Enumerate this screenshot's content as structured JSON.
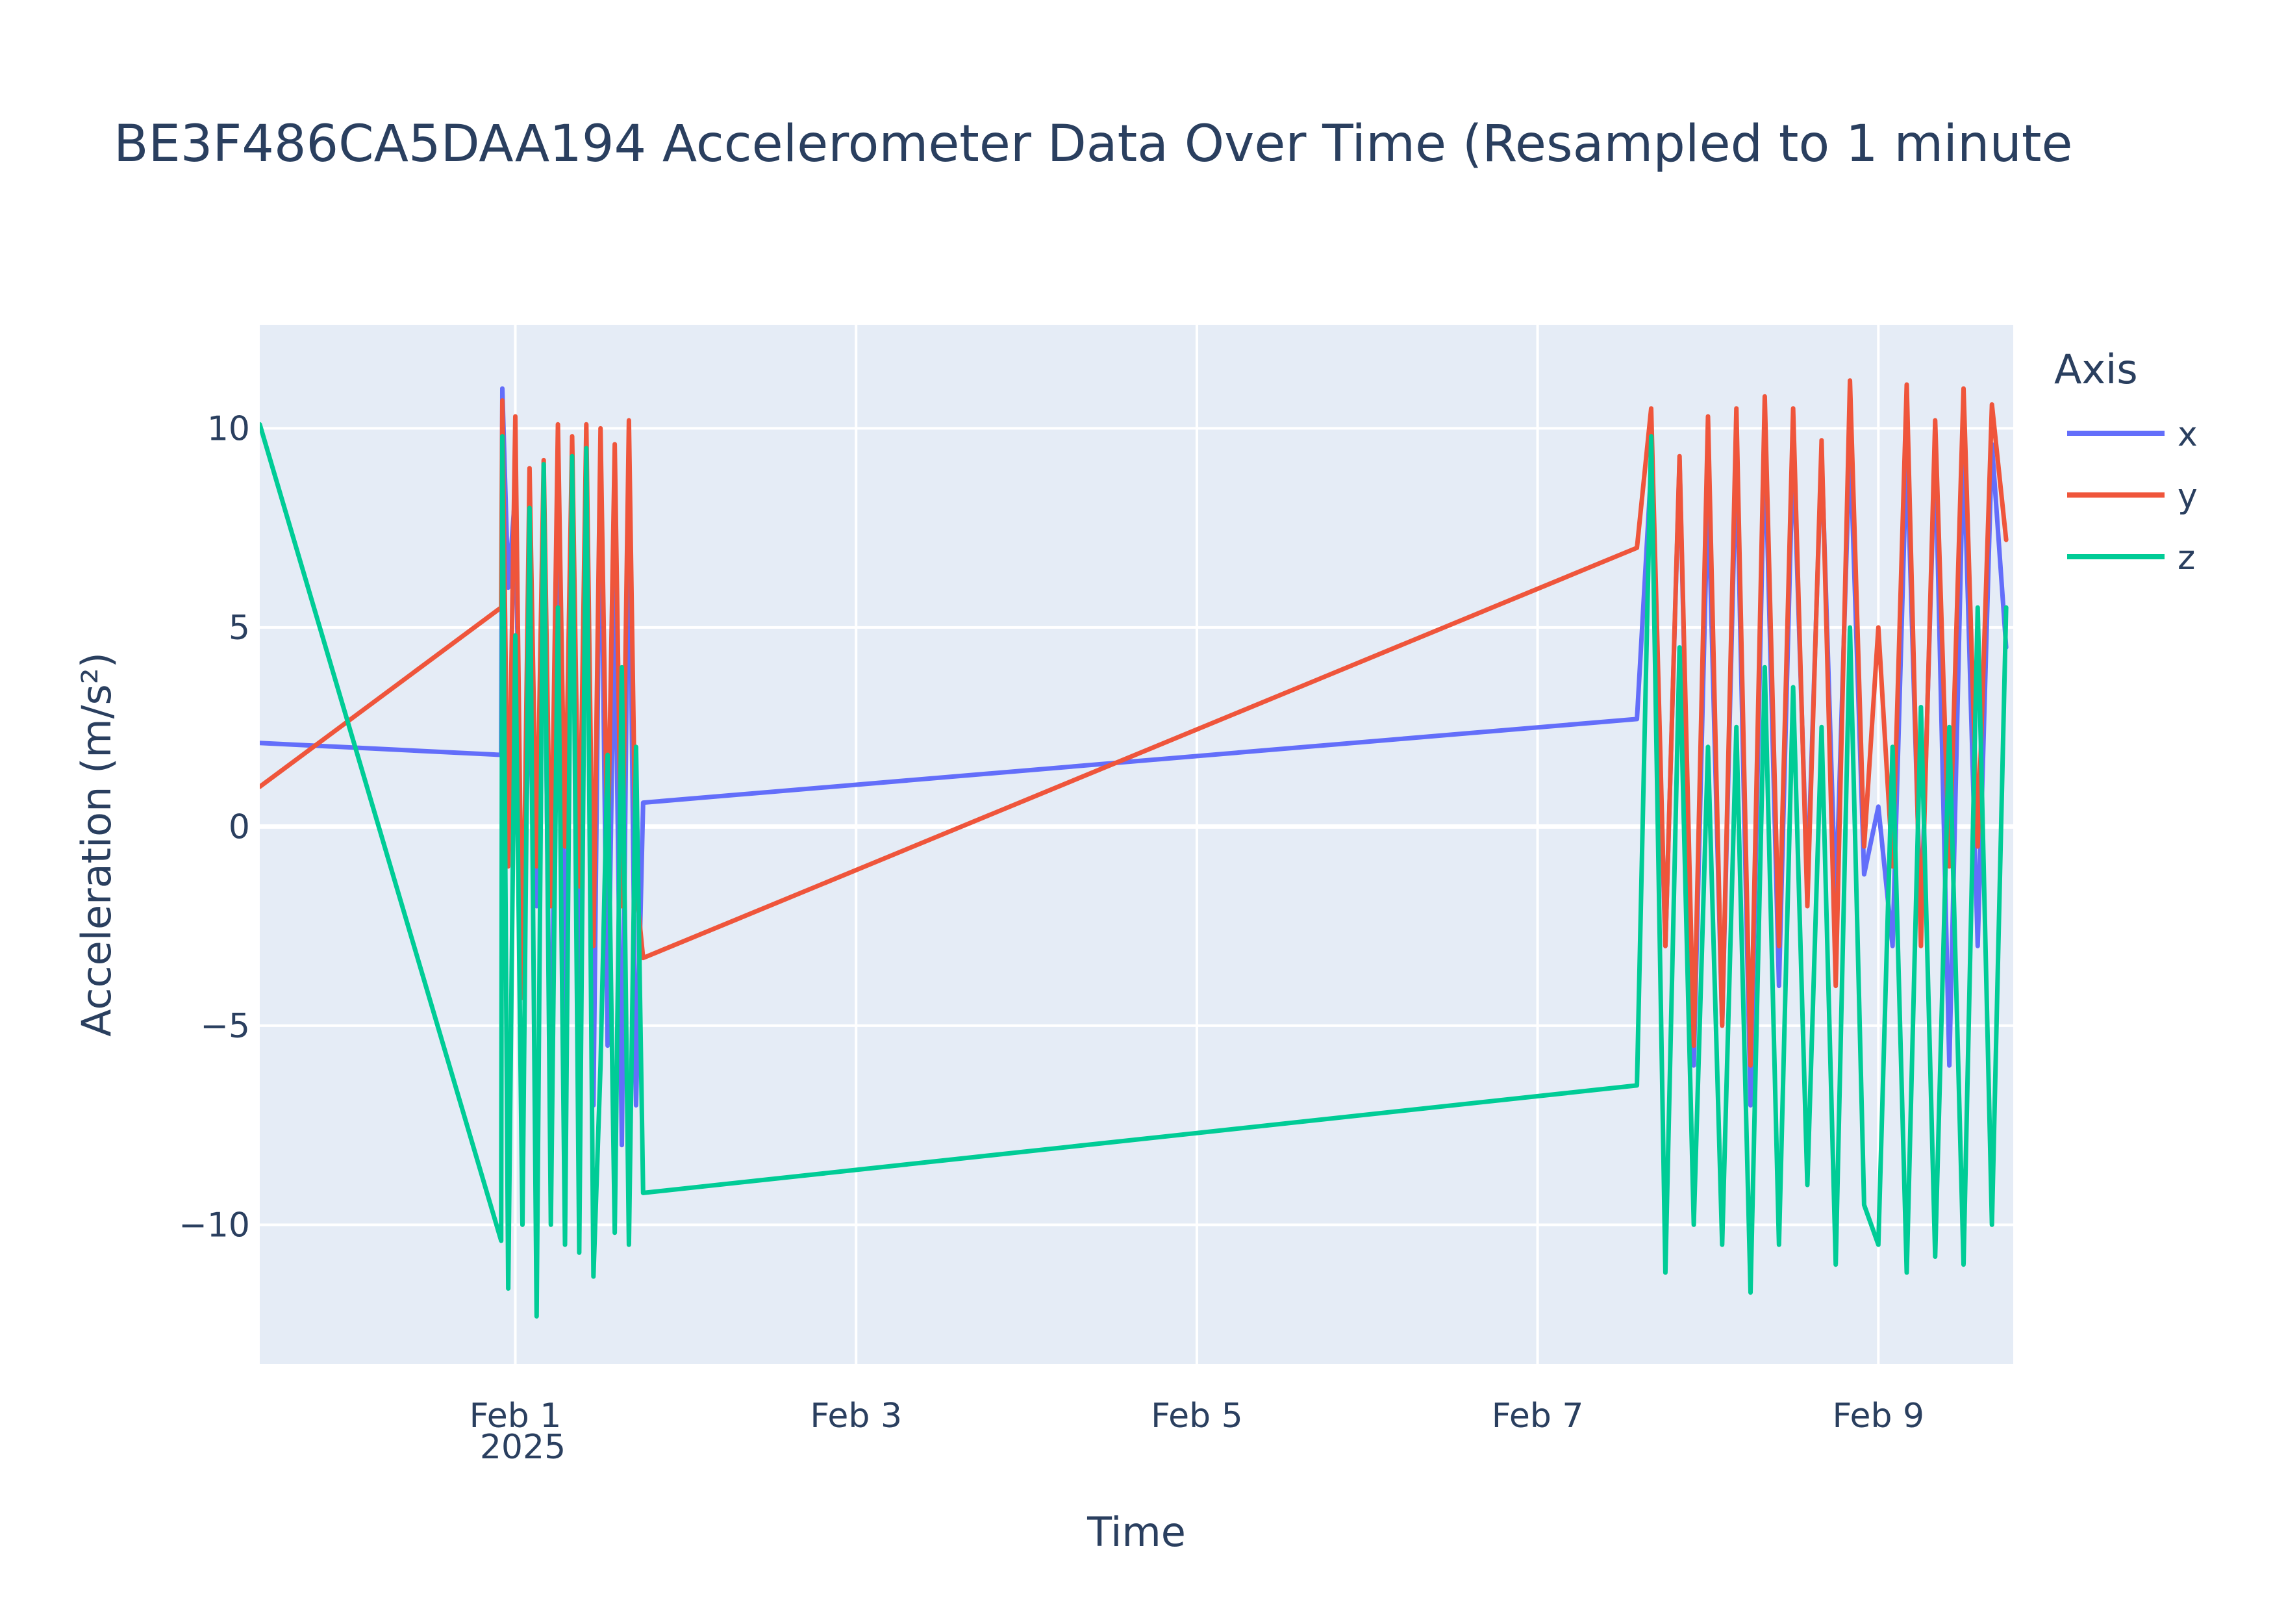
{
  "chart_data": {
    "type": "line",
    "title": "BE3F486CA5DAA194 Accelerometer Data Over Time (Resampled to 1 minute",
    "xlabel": "Time",
    "ylabel": "Acceleration (m/s²)",
    "x_tick_labels": [
      "Feb 1",
      "Feb 3",
      "Feb 5",
      "Feb 7",
      "Feb 9"
    ],
    "x_tick_values": [
      "2025-02-01",
      "2025-02-03",
      "2025-02-05",
      "2025-02-07",
      "2025-02-09"
    ],
    "x_year_label": "2025",
    "x_range": [
      "2025-01-30T12:00",
      "2025-02-09T19:00"
    ],
    "y_ticks": [
      10,
      5,
      0,
      -5,
      -10
    ],
    "y_tick_labels": [
      "10",
      "5",
      "0",
      "−5",
      "−10"
    ],
    "ylim": [
      -13.5,
      12.6
    ],
    "grid": true,
    "legend_title": "Axis",
    "legend_position": "top-right",
    "colors": {
      "x": "#636efa",
      "y": "#ef553b",
      "z": "#00cc96",
      "plot_bg": "#e5ecf6",
      "grid": "#ffffff",
      "text": "#2a3f5f"
    },
    "series": [
      {
        "name": "x",
        "color": "#636efa",
        "x": [
          "2025-01-30T12:00",
          "2025-01-31T22:00",
          "2025-01-31T22:10",
          "2025-01-31T23:00",
          "2025-02-01T00:00",
          "2025-02-01T01:00",
          "2025-02-01T02:00",
          "2025-02-01T03:00",
          "2025-02-01T04:00",
          "2025-02-01T05:00",
          "2025-02-01T06:00",
          "2025-02-01T07:00",
          "2025-02-01T08:00",
          "2025-02-01T09:00",
          "2025-02-01T10:00",
          "2025-02-01T11:00",
          "2025-02-01T12:00",
          "2025-02-01T13:00",
          "2025-02-01T14:00",
          "2025-02-01T15:00",
          "2025-02-01T16:00",
          "2025-02-01T17:00",
          "2025-02-01T18:00",
          "2025-02-07T14:00",
          "2025-02-07T16:00",
          "2025-02-07T18:00",
          "2025-02-07T20:00",
          "2025-02-07T22:00",
          "2025-02-08T00:00",
          "2025-02-08T02:00",
          "2025-02-08T04:00",
          "2025-02-08T06:00",
          "2025-02-08T08:00",
          "2025-02-08T10:00",
          "2025-02-08T12:00",
          "2025-02-08T14:00",
          "2025-02-08T16:00",
          "2025-02-08T18:00",
          "2025-02-08T20:00",
          "2025-02-08T22:00",
          "2025-02-09T00:00",
          "2025-02-09T02:00",
          "2025-02-09T04:00",
          "2025-02-09T06:00",
          "2025-02-09T08:00",
          "2025-02-09T10:00",
          "2025-02-09T12:00",
          "2025-02-09T14:00",
          "2025-02-09T16:00",
          "2025-02-09T18:00"
        ],
        "values": [
          2.1,
          1.8,
          11.0,
          6.0,
          8.4,
          -4.0,
          3.7,
          -2.0,
          7.9,
          -8.4,
          9.3,
          -5.0,
          8.0,
          -6.0,
          9.4,
          -7.0,
          9.5,
          -5.5,
          6.0,
          -8.0,
          9.0,
          -7.0,
          0.6,
          2.7,
          9.0,
          -3.0,
          9.2,
          -6.0,
          8.5,
          -5.0,
          9.5,
          -7.0,
          9.8,
          -4.0,
          9.6,
          -1.5,
          9.4,
          -2.0,
          9.7,
          -1.2,
          0.5,
          -3.0,
          9.5,
          -2.5,
          9.6,
          -6.0,
          9.6,
          -3.0,
          9.6,
          4.5
        ]
      },
      {
        "name": "y",
        "color": "#ef553b",
        "x": [
          "2025-01-30T12:00",
          "2025-01-31T22:00",
          "2025-01-31T22:10",
          "2025-01-31T23:00",
          "2025-02-01T00:00",
          "2025-02-01T01:00",
          "2025-02-01T02:00",
          "2025-02-01T03:00",
          "2025-02-01T04:00",
          "2025-02-01T05:00",
          "2025-02-01T06:00",
          "2025-02-01T07:00",
          "2025-02-01T08:00",
          "2025-02-01T09:00",
          "2025-02-01T10:00",
          "2025-02-01T11:00",
          "2025-02-01T12:00",
          "2025-02-01T13:00",
          "2025-02-01T14:00",
          "2025-02-01T15:00",
          "2025-02-01T16:00",
          "2025-02-01T17:00",
          "2025-02-01T18:00",
          "2025-02-07T14:00",
          "2025-02-07T16:00",
          "2025-02-07T18:00",
          "2025-02-07T20:00",
          "2025-02-07T22:00",
          "2025-02-08T00:00",
          "2025-02-08T02:00",
          "2025-02-08T04:00",
          "2025-02-08T06:00",
          "2025-02-08T08:00",
          "2025-02-08T10:00",
          "2025-02-08T12:00",
          "2025-02-08T14:00",
          "2025-02-08T16:00",
          "2025-02-08T18:00",
          "2025-02-08T20:00",
          "2025-02-08T22:00",
          "2025-02-09T00:00",
          "2025-02-09T02:00",
          "2025-02-09T04:00",
          "2025-02-09T06:00",
          "2025-02-09T08:00",
          "2025-02-09T10:00",
          "2025-02-09T12:00",
          "2025-02-09T14:00",
          "2025-02-09T16:00",
          "2025-02-09T18:00"
        ],
        "values": [
          1.0,
          5.5,
          10.7,
          -1.0,
          10.3,
          -4.3,
          9.0,
          -1.0,
          9.2,
          -2.0,
          10.1,
          -0.5,
          9.8,
          -1.5,
          10.1,
          -3.0,
          10.0,
          -1.0,
          9.6,
          -2.0,
          10.2,
          -1.5,
          -3.3,
          7.0,
          10.5,
          -3.0,
          9.3,
          -5.5,
          10.3,
          -5.0,
          10.5,
          -6.0,
          10.8,
          -3.0,
          10.5,
          -2.0,
          9.7,
          -4.0,
          11.2,
          -0.5,
          5.0,
          -1.0,
          11.1,
          -3.0,
          10.2,
          -1.0,
          11.0,
          -0.5,
          10.6,
          7.2
        ]
      },
      {
        "name": "z",
        "color": "#00cc96",
        "x": [
          "2025-01-30T12:00",
          "2025-01-31T22:00",
          "2025-01-31T22:10",
          "2025-01-31T23:00",
          "2025-02-01T00:00",
          "2025-02-01T01:00",
          "2025-02-01T02:00",
          "2025-02-01T03:00",
          "2025-02-01T04:00",
          "2025-02-01T05:00",
          "2025-02-01T06:00",
          "2025-02-01T07:00",
          "2025-02-01T08:00",
          "2025-02-01T09:00",
          "2025-02-01T10:00",
          "2025-02-01T11:00",
          "2025-02-01T12:00",
          "2025-02-01T13:00",
          "2025-02-01T14:00",
          "2025-02-01T15:00",
          "2025-02-01T16:00",
          "2025-02-01T17:00",
          "2025-02-01T18:00",
          "2025-02-07T14:00",
          "2025-02-07T16:00",
          "2025-02-07T18:00",
          "2025-02-07T20:00",
          "2025-02-07T22:00",
          "2025-02-08T00:00",
          "2025-02-08T02:00",
          "2025-02-08T04:00",
          "2025-02-08T06:00",
          "2025-02-08T08:00",
          "2025-02-08T10:00",
          "2025-02-08T12:00",
          "2025-02-08T14:00",
          "2025-02-08T16:00",
          "2025-02-08T18:00",
          "2025-02-08T20:00",
          "2025-02-08T22:00",
          "2025-02-09T00:00",
          "2025-02-09T02:00",
          "2025-02-09T04:00",
          "2025-02-09T06:00",
          "2025-02-09T08:00",
          "2025-02-09T10:00",
          "2025-02-09T12:00",
          "2025-02-09T14:00",
          "2025-02-09T16:00",
          "2025-02-09T18:00"
        ],
        "values": [
          10.1,
          -10.4,
          9.8,
          -11.6,
          4.8,
          -10.0,
          8.0,
          -12.3,
          9.1,
          -10.0,
          5.5,
          -10.5,
          9.3,
          -10.7,
          9.5,
          -11.3,
          -6.0,
          1.8,
          -10.2,
          4.0,
          -10.5,
          2.0,
          -9.2,
          -6.5,
          9.8,
          -11.2,
          4.5,
          -10.0,
          2.0,
          -10.5,
          2.5,
          -11.7,
          4.0,
          -10.5,
          3.5,
          -9.0,
          2.5,
          -11.0,
          5.0,
          -9.5,
          -10.5,
          2.0,
          -11.2,
          3.0,
          -10.8,
          2.5,
          -11.0,
          5.5,
          -10.0,
          5.5
        ]
      }
    ]
  }
}
